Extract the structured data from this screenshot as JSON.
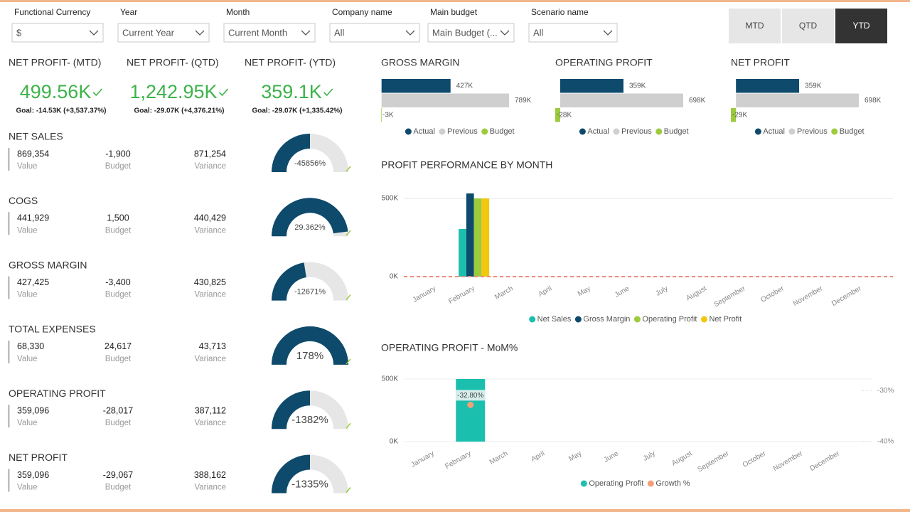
{
  "filters": [
    {
      "label": "Functional Currency",
      "value": "$"
    },
    {
      "label": "Year",
      "value": "Current Year"
    },
    {
      "label": "Month",
      "value": "Current Month"
    },
    {
      "label": "Company name",
      "value": "All"
    },
    {
      "label": "Main budget",
      "value": "Main Budget (..."
    },
    {
      "label": "Scenario name",
      "value": "All"
    }
  ],
  "tabs": {
    "items": [
      "MTD",
      "QTD",
      "YTD"
    ],
    "active": 2
  },
  "kpis": [
    {
      "title": "NET PROFIT- (MTD)",
      "value": "499.56K",
      "goal": "Goal: -14.53K (+3,537.37%)"
    },
    {
      "title": "NET PROFIT- (QTD)",
      "value": "1,242.95K",
      "goal": "Goal: -29.07K (+4,376.21%)"
    },
    {
      "title": "NET PROFIT- (YTD)",
      "value": "359.1K",
      "goal": "Goal: -29.07K (+1,335.42%)"
    }
  ],
  "metrics": [
    {
      "title": "NET SALES",
      "value": "869,354",
      "value_caption": "Value",
      "budget": "-1,900",
      "budget_caption": "Budget",
      "variance": "871,254",
      "variance_caption": "Variance",
      "gauge_label": "-45856%",
      "gauge_fill": 50
    },
    {
      "title": "COGS",
      "value": "441,929",
      "value_caption": "Value",
      "budget": "1,500",
      "budget_caption": "Budget",
      "variance": "440,429",
      "variance_caption": "Variance",
      "gauge_label": "29.362%",
      "gauge_fill": 96
    },
    {
      "title": "GROSS MARGIN",
      "value": "427,425",
      "value_caption": "Value",
      "budget": "-3,400",
      "budget_caption": "Budget",
      "variance": "430,825",
      "variance_caption": "Variance",
      "gauge_label": "-12671%",
      "gauge_fill": 45
    },
    {
      "title": "TOTAL EXPENSES",
      "value": "68,330",
      "value_caption": "Value",
      "budget": "24,617",
      "budget_caption": "Budget",
      "variance": "43,713",
      "variance_caption": "Variance",
      "gauge_label": "178%",
      "gauge_fill": 100
    },
    {
      "title": "OPERATING PROFIT",
      "value": "359,096",
      "value_caption": "Value",
      "budget": "-28,017",
      "budget_caption": "Budget",
      "variance": "387,112",
      "variance_caption": "Variance",
      "gauge_label": "-1382%",
      "gauge_fill": 50
    },
    {
      "title": "NET PROFIT",
      "value": "359,096",
      "value_caption": "Value",
      "budget": "-29,067",
      "budget_caption": "Budget",
      "variance": "388,162",
      "variance_caption": "Variance",
      "gauge_label": "-1335%",
      "gauge_fill": 50
    }
  ],
  "chart_data": [
    {
      "type": "bar",
      "orientation": "horizontal",
      "title": "GROSS MARGIN",
      "categories": [
        "Actual",
        "Previous",
        "Budget"
      ],
      "values": [
        427,
        789,
        -3
      ],
      "value_labels": [
        "427K",
        "789K",
        "-3K"
      ],
      "colors": [
        "#0e4a6b",
        "#cfcfcf",
        "#9ccb3c"
      ]
    },
    {
      "type": "bar",
      "orientation": "horizontal",
      "title": "OPERATING PROFIT",
      "categories": [
        "Actual",
        "Previous",
        "Budget"
      ],
      "values": [
        359,
        698,
        -28
      ],
      "value_labels": [
        "359K",
        "698K",
        "-28K"
      ],
      "colors": [
        "#0e4a6b",
        "#cfcfcf",
        "#9ccb3c"
      ]
    },
    {
      "type": "bar",
      "orientation": "horizontal",
      "title": "NET PROFIT",
      "categories": [
        "Actual",
        "Previous",
        "Budget"
      ],
      "values": [
        359,
        698,
        -29
      ],
      "value_labels": [
        "359K",
        "698K",
        "-29K"
      ],
      "colors": [
        "#0e4a6b",
        "#cfcfcf",
        "#9ccb3c"
      ]
    },
    {
      "type": "grouped_bar",
      "title": "PROFIT PERFORMANCE BY MONTH",
      "categories": [
        "January",
        "February",
        "March",
        "April",
        "May",
        "June",
        "July",
        "August",
        "September",
        "October",
        "November",
        "December"
      ],
      "series": [
        {
          "name": "Net Sales",
          "color": "#1bbfae",
          "values": [
            null,
            305000,
            null,
            null,
            null,
            null,
            null,
            null,
            null,
            null,
            null,
            null
          ]
        },
        {
          "name": "Gross Margin",
          "color": "#0e4a6b",
          "values": [
            null,
            532000,
            null,
            null,
            null,
            null,
            null,
            null,
            null,
            null,
            null,
            null
          ]
        },
        {
          "name": "Operating Profit",
          "color": "#9ccb3c",
          "values": [
            null,
            500000,
            null,
            null,
            null,
            null,
            null,
            null,
            null,
            null,
            null,
            null
          ]
        },
        {
          "name": "Net Profit",
          "color": "#f2c80f",
          "values": [
            null,
            500000,
            null,
            null,
            null,
            null,
            null,
            null,
            null,
            null,
            null,
            null
          ]
        }
      ],
      "ylim": [
        0,
        564000
      ],
      "yticks": [
        {
          "value": 0,
          "label": "0K"
        },
        {
          "value": 500000,
          "label": "500K"
        }
      ],
      "grid": true
    },
    {
      "type": "combo",
      "title": "OPERATING PROFIT  - MoM%",
      "categories": [
        "January",
        "February",
        "March",
        "April",
        "May",
        "June",
        "July",
        "August",
        "September",
        "October",
        "November",
        "December"
      ],
      "series": [
        {
          "name": "Operating Profit",
          "color": "#1bbfae",
          "mark": "bar",
          "values": [
            null,
            500000,
            null,
            null,
            null,
            null,
            null,
            null,
            null,
            null,
            null,
            null
          ]
        },
        {
          "name": "Growth %",
          "color": "#f4a07a",
          "mark": "point",
          "axis": "y2",
          "values": [
            null,
            -32.8,
            null,
            null,
            null,
            null,
            null,
            null,
            null,
            null,
            null,
            null
          ],
          "value_labels": [
            null,
            "-32.80%",
            null,
            null,
            null,
            null,
            null,
            null,
            null,
            null,
            null,
            null
          ]
        }
      ],
      "ylim": [
        0,
        534000
      ],
      "yticks": [
        {
          "value": 0,
          "label": "0K"
        },
        {
          "value": 500000,
          "label": "500K"
        }
      ],
      "y2lim": [
        -40,
        -26.9
      ],
      "y2ticks": [
        {
          "value": -30,
          "label": "-30%"
        },
        {
          "value": -40,
          "label": "-40%"
        }
      ],
      "grid": true
    }
  ]
}
